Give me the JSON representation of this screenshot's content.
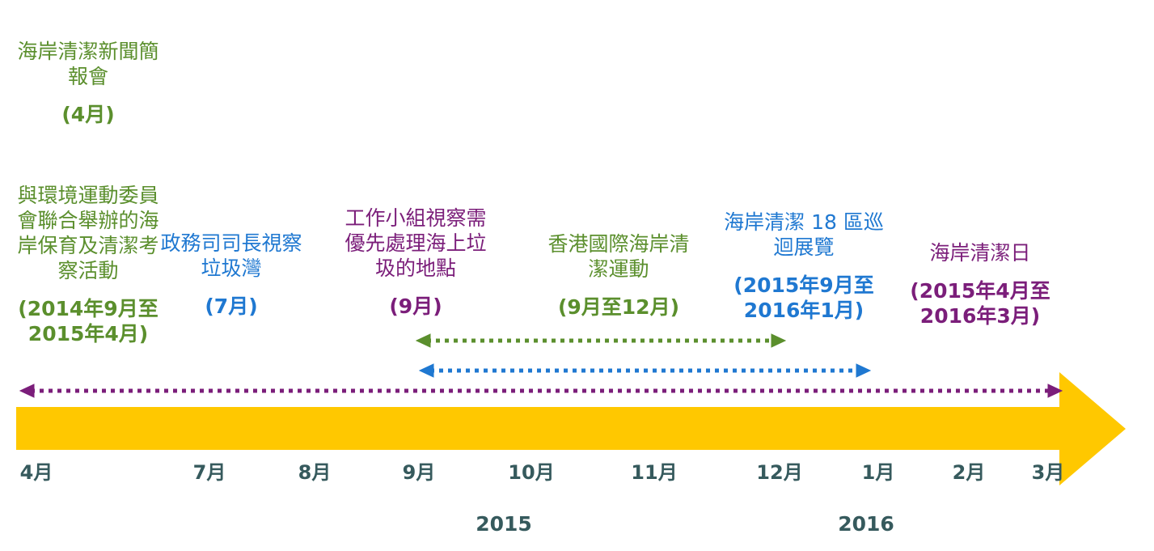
{
  "events": [
    {
      "id": "press",
      "title": "海岸清潔新聞簡報會",
      "date": "(4月)"
    },
    {
      "id": "eco",
      "title": "與環境運動委員會聯合舉辦的海岸保育及清潔考察活動",
      "date": "(2014年9月至2015年4月)"
    },
    {
      "id": "cs",
      "title": "政務司司長視察垃圾灣",
      "date": "(7月)"
    },
    {
      "id": "wg",
      "title": "工作小組視察需優先處理海上垃圾的地點",
      "date": "(9月)"
    },
    {
      "id": "icc",
      "title": "香港國際海岸清潔運動",
      "date": "(9月至12月)"
    },
    {
      "id": "exhibit",
      "title": "海岸清潔 18 區巡迴展覽",
      "date": "(2015年9月至2016年1月)"
    },
    {
      "id": "day",
      "title": "海岸清潔日",
      "date": "(2015年4月至2016年3月)"
    }
  ],
  "axis": {
    "months": [
      "4月",
      "7月",
      "8月",
      "9月",
      "10月",
      "11月",
      "12月",
      "1月",
      "2月",
      "3月"
    ],
    "years": [
      "2015",
      "2016"
    ]
  },
  "colors": {
    "arrow": "#ffc800",
    "green": "#5b8f2d",
    "blue": "#1f78d1",
    "purple": "#7b1e7a",
    "axis_text": "#365a5d"
  }
}
